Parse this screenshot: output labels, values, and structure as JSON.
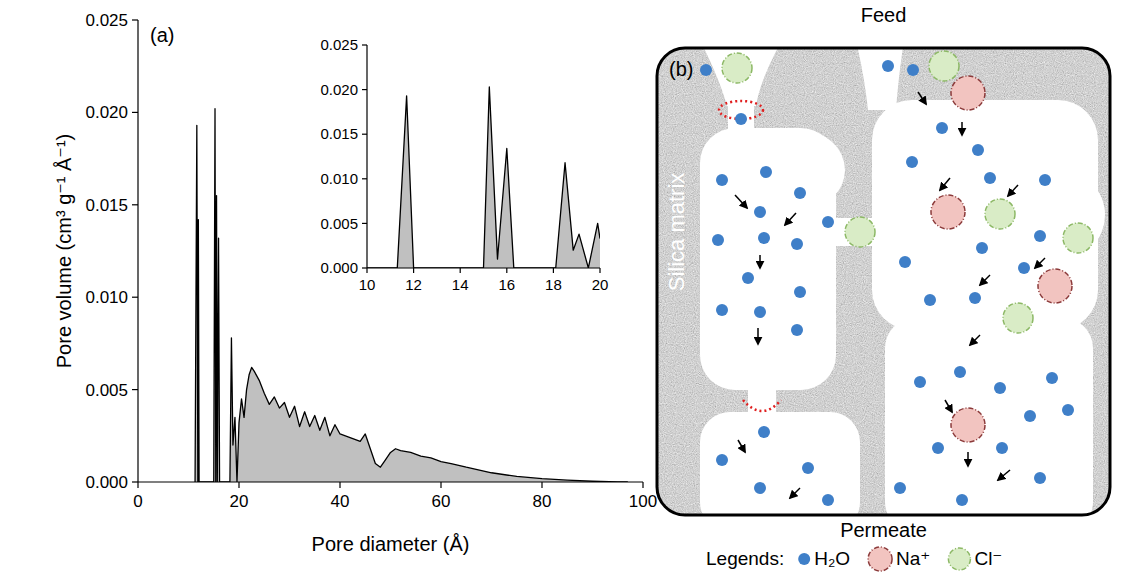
{
  "chart_data": [
    {
      "type": "area",
      "panel": "(a)",
      "x_label": "Pore diameter (Å)",
      "y_label": "Pore volume (cm³ g⁻¹ Å⁻¹)",
      "color": "#c0c0c0",
      "grid": false,
      "x": [
        11.3,
        11.65,
        11.85,
        11.95,
        12.1,
        15.0,
        15.25,
        15.4,
        15.55,
        15.7,
        15.95,
        16.15,
        18.2,
        18.5,
        18.8,
        19.2,
        19.6,
        20,
        20.5,
        21,
        21.5,
        22,
        22.5,
        23,
        24,
        25,
        26,
        27,
        28,
        29,
        30,
        31,
        32,
        33,
        34,
        35,
        36,
        37,
        38,
        39,
        40,
        42,
        44,
        45,
        46,
        47,
        48,
        49,
        50,
        51,
        52,
        54,
        56,
        58,
        60,
        62,
        65,
        70,
        75,
        80,
        85,
        90,
        95,
        97
      ],
      "values": [
        0,
        0.0193,
        0,
        0.0142,
        0,
        0,
        0.0202,
        0,
        0.0155,
        0,
        0.0132,
        0,
        0,
        0.0078,
        0.002,
        0.0035,
        0,
        0.0032,
        0.0045,
        0.0035,
        0.005,
        0.0058,
        0.0062,
        0.006,
        0.0055,
        0.0048,
        0.0042,
        0.0046,
        0.004,
        0.0043,
        0.0035,
        0.0041,
        0.003,
        0.0038,
        0.003,
        0.0036,
        0.0028,
        0.0035,
        0.0025,
        0.0031,
        0.0026,
        0.0024,
        0.0022,
        0.0026,
        0.0018,
        0.001,
        0.0008,
        0.0012,
        0.0016,
        0.0018,
        0.0017,
        0.0016,
        0.0014,
        0.0013,
        0.0011,
        0.001,
        0.0008,
        0.0005,
        0.0003,
        0.00018,
        0.0001,
        4e-05,
        1e-05,
        0
      ],
      "xlim": [
        0,
        100
      ],
      "xticks": [
        0,
        20,
        40,
        60,
        80,
        100
      ],
      "ylim": [
        0,
        0.025
      ],
      "yticks": [
        {
          "value": 0,
          "label": "0.000"
        },
        {
          "value": 0.005,
          "label": "0.005"
        },
        {
          "value": 0.01,
          "label": "0.010"
        },
        {
          "value": 0.015,
          "label": "0.015"
        },
        {
          "value": 0.02,
          "label": "0.020"
        },
        {
          "value": 0.025,
          "label": "0.025"
        }
      ]
    },
    {
      "type": "area",
      "color": "#c0c0c0",
      "grid": false,
      "x": [
        10,
        11.3,
        11.7,
        12.0,
        15.0,
        15.25,
        15.6,
        16.0,
        16.3,
        18.1,
        18.5,
        18.85,
        19.1,
        19.5,
        19.9,
        20
      ],
      "values": [
        0,
        0,
        0.0193,
        0,
        0,
        0.0203,
        0.001,
        0.0134,
        0,
        0,
        0.0118,
        0.002,
        0.0038,
        0,
        0.005,
        0.0033
      ],
      "xlim": [
        10,
        20
      ],
      "xticks": [
        10,
        12,
        14,
        16,
        18,
        20
      ],
      "ylim": [
        0,
        0.025
      ],
      "yticks": [
        {
          "value": 0,
          "label": "0.000"
        },
        {
          "value": 0.005,
          "label": "0.005"
        },
        {
          "value": 0.01,
          "label": "0.010"
        },
        {
          "value": 0.015,
          "label": "0.015"
        },
        {
          "value": 0.02,
          "label": "0.020"
        },
        {
          "value": 0.025,
          "label": "0.025"
        }
      ]
    }
  ],
  "diagram": {
    "panel": "(b)",
    "top_label": "Feed",
    "bottom_label": "Permeate",
    "matrix_label": "Silica matrix",
    "legend_title": "Legends:",
    "legend_items": [
      {
        "label": "H₂O"
      },
      {
        "label": "Na⁺"
      },
      {
        "label": "Cl⁻"
      }
    ]
  }
}
